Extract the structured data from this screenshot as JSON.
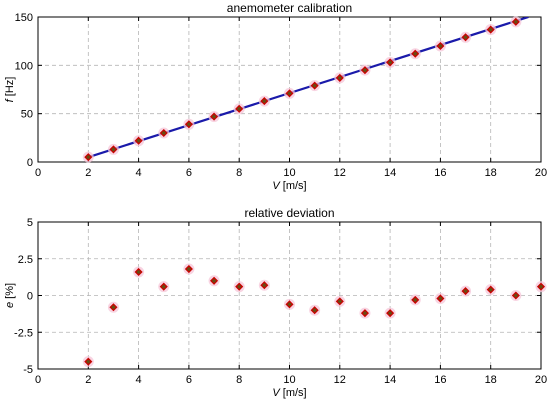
{
  "chart_data": [
    {
      "type": "line",
      "title": "anemometer calibration",
      "xlabel_var": "V",
      "xlabel_unit": " [m/s]",
      "ylabel_var": "f",
      "ylabel_unit": " [Hz]",
      "xlim": [
        0,
        20
      ],
      "ylim": [
        0,
        150
      ],
      "xticks": [
        0,
        2,
        4,
        6,
        8,
        10,
        12,
        14,
        16,
        18,
        20
      ],
      "yticks": [
        0,
        50,
        100,
        150
      ],
      "grid": true,
      "series": [
        {
          "kind": "scatter",
          "marker": "diamond",
          "color": "#cc0000",
          "x": [
            2,
            3,
            4,
            5,
            6,
            7,
            8,
            9,
            10,
            11,
            12,
            13,
            14,
            15,
            16,
            17,
            18,
            19
          ],
          "y": [
            5,
            13,
            22,
            30,
            39,
            47,
            55,
            63,
            71,
            79,
            87,
            95,
            103,
            112,
            120,
            129,
            137,
            145
          ]
        },
        {
          "kind": "line",
          "color": "#1a1aaa",
          "x": [
            2,
            19.5
          ],
          "y": [
            5,
            150
          ]
        }
      ]
    },
    {
      "type": "scatter",
      "title": "relative deviation",
      "xlabel_var": "V",
      "xlabel_unit": " [m/s]",
      "ylabel_var": "e",
      "ylabel_unit": " [%]",
      "xlim": [
        0,
        20
      ],
      "ylim": [
        -5,
        5
      ],
      "xticks": [
        0,
        2,
        4,
        6,
        8,
        10,
        12,
        14,
        16,
        18,
        20
      ],
      "yticks": [
        -5,
        -2.5,
        0,
        2.5,
        5
      ],
      "yticklabels": [
        "-5",
        "-2.5",
        "0",
        "2.5",
        "5"
      ],
      "grid": true,
      "series": [
        {
          "kind": "scatter",
          "marker": "diamond",
          "color": "#cc0000",
          "x": [
            2,
            3,
            4,
            5,
            6,
            7,
            8,
            9,
            10,
            11,
            12,
            13,
            14,
            15,
            16,
            17,
            18,
            19,
            20
          ],
          "y": [
            -4.5,
            -0.8,
            1.6,
            0.6,
            1.8,
            1.0,
            0.6,
            0.7,
            -0.6,
            -1.0,
            -0.4,
            -1.2,
            -1.2,
            -0.3,
            -0.2,
            0.3,
            0.4,
            0.0,
            0.6
          ]
        }
      ]
    }
  ]
}
